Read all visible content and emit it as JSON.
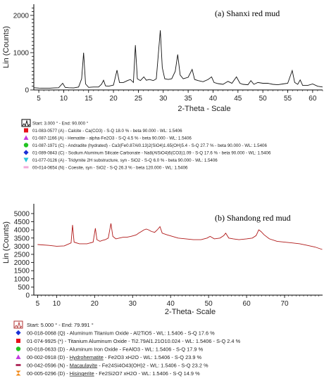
{
  "chart_data": [
    {
      "type": "line",
      "title": "(a) Shanxi red mud",
      "xlabel": "2-Theta - Scale",
      "ylabel": "Lin (Counts)",
      "xlim": [
        4,
        62
      ],
      "ylim": [
        0,
        2300
      ],
      "x_ticks": [
        5,
        10,
        15,
        20,
        25,
        30,
        35,
        40,
        45,
        50,
        55,
        60
      ],
      "y_ticks": [
        0,
        100,
        200,
        300,
        400,
        500,
        600,
        700,
        800,
        900,
        1000,
        1100,
        1200,
        1300,
        1400,
        1500,
        1600,
        1700,
        1800,
        1900,
        2000,
        2100,
        2200
      ],
      "y_tick_labels": [
        "0",
        "",
        "",
        "",
        "",
        "",
        "",
        "",
        "",
        "",
        "1000",
        "",
        "",
        "",
        "",
        "",
        "",
        "",
        "",
        "",
        "2000",
        "",
        ""
      ],
      "series": [
        {
          "values": [
            [
              4,
              60
            ],
            [
              5,
              50
            ],
            [
              6,
              45
            ],
            [
              7,
              45
            ],
            [
              8,
              55
            ],
            [
              9,
              60
            ],
            [
              9.8,
              180
            ],
            [
              10.3,
              70
            ],
            [
              11,
              60
            ],
            [
              12,
              55
            ],
            [
              13,
              80
            ],
            [
              13.6,
              300
            ],
            [
              14,
              1000
            ],
            [
              14.4,
              160
            ],
            [
              15,
              70
            ],
            [
              16,
              80
            ],
            [
              17,
              80
            ],
            [
              17.6,
              150
            ],
            [
              18,
              260
            ],
            [
              18.4,
              110
            ],
            [
              19,
              100
            ],
            [
              20,
              130
            ],
            [
              20.7,
              530
            ],
            [
              21.2,
              200
            ],
            [
              22,
              200
            ],
            [
              22.8,
              250
            ],
            [
              23.4,
              280
            ],
            [
              24,
              200
            ],
            [
              24.4,
              1200
            ],
            [
              24.8,
              300
            ],
            [
              25.4,
              250
            ],
            [
              26.1,
              350
            ],
            [
              26.6,
              260
            ],
            [
              27.2,
              280
            ],
            [
              28,
              250
            ],
            [
              28.6,
              300
            ],
            [
              29.4,
              1600
            ],
            [
              29.8,
              600
            ],
            [
              30.3,
              300
            ],
            [
              31,
              280
            ],
            [
              31.7,
              300
            ],
            [
              32.4,
              500
            ],
            [
              32.9,
              950
            ],
            [
              33.4,
              400
            ],
            [
              34,
              300
            ],
            [
              35,
              340
            ],
            [
              35.8,
              550
            ],
            [
              36.3,
              280
            ],
            [
              37,
              250
            ],
            [
              38,
              220
            ],
            [
              39,
              280
            ],
            [
              39.7,
              350
            ],
            [
              40.2,
              200
            ],
            [
              41,
              170
            ],
            [
              42,
              150
            ],
            [
              43,
              230
            ],
            [
              43.8,
              180
            ],
            [
              44.7,
              350
            ],
            [
              45.4,
              180
            ],
            [
              46,
              150
            ],
            [
              47,
              140
            ],
            [
              47.6,
              250
            ],
            [
              48.2,
              150
            ],
            [
              49,
              200
            ],
            [
              50,
              180
            ],
            [
              51,
              180
            ],
            [
              52,
              150
            ],
            [
              53,
              140
            ],
            [
              54,
              160
            ],
            [
              55,
              180
            ],
            [
              55.9,
              520
            ],
            [
              56.4,
              200
            ],
            [
              57,
              150
            ],
            [
              57.5,
              270
            ],
            [
              58,
              120
            ],
            [
              59,
              120
            ],
            [
              60,
              160
            ],
            [
              61,
              100
            ],
            [
              62,
              80
            ]
          ]
        }
      ],
      "legend": [
        {
          "text": "Start: 3.000 ° - End: 90.000 °",
          "color": "#000000",
          "marker": "box"
        },
        {
          "text": "01-083-0577 (A) - Calcite - Ca(CO3) - S-Q 18.0 % - beta 90.000 - WL: 1.5406",
          "color": "#e8101a",
          "marker": "square"
        },
        {
          "text": "01-087-1166 (A) - Hematite - alpha-Fe2O3 - S-Q 4.5 % - beta 90.000 - WL: 1.5406",
          "color": "#c33be0",
          "marker": "triangle"
        },
        {
          "text": "01-087-1971 (C) - Andradite (hydrated) - Ca3(Fe0.87Al0.13)2(SiO4)1.65(OH)5.4 - S-Q 27.7 % - beta 90.000 - WL: 1.5406",
          "color": "#22c422",
          "marker": "circle"
        },
        {
          "text": "01-089-0843 (C) - Sodium Aluminum Silicate Carbonate - Na8(AlSiO4)6(CO3)1.09 - S-Q 17.6 % - beta 90.000 - WL: 1.5406",
          "color": "#1a2fd6",
          "marker": "diamond"
        },
        {
          "text": "01-077-0126 (A) - Tridymite 2H substructure, syn - SiO2 - S-Q 6.0 % - beta 90.000 - WL: 1.5406",
          "color": "#27c6d8",
          "marker": "triangle-down"
        },
        {
          "text": "00-014-0654 (N) - Coesite, syn - SiO2 - S-Q 26.3 % - beta 120.000 - WL: 1.5406",
          "color": "#f2a8d8",
          "marker": "bar"
        }
      ]
    },
    {
      "type": "line",
      "title": "(b) Shandong red mud",
      "xlabel": "2-Theta- Scale",
      "ylabel": "Lin (Counts)",
      "xlim": [
        4,
        80
      ],
      "ylim": [
        0,
        5600
      ],
      "x_ticks": [
        5,
        10,
        20,
        30,
        40,
        50,
        60,
        70
      ],
      "y_ticks": [
        0,
        500,
        1000,
        1500,
        2000,
        2500,
        3000,
        3500,
        4000,
        4500,
        5000
      ],
      "series": [
        {
          "values": [
            [
              5,
              3100
            ],
            [
              8,
              3050
            ],
            [
              10,
              3000
            ],
            [
              12,
              3020
            ],
            [
              13.8,
              3200
            ],
            [
              14.2,
              4300
            ],
            [
              14.6,
              3250
            ],
            [
              16,
              3150
            ],
            [
              18,
              3150
            ],
            [
              19.6,
              3250
            ],
            [
              20.2,
              4100
            ],
            [
              20.6,
              3400
            ],
            [
              21.4,
              3300
            ],
            [
              22,
              3350
            ],
            [
              22.8,
              3400
            ],
            [
              23.6,
              3500
            ],
            [
              24.3,
              4400
            ],
            [
              24.8,
              3600
            ],
            [
              25.6,
              3450
            ],
            [
              26.5,
              3500
            ],
            [
              27.5,
              3550
            ],
            [
              28.5,
              3550
            ],
            [
              29.5,
              3600
            ],
            [
              30.3,
              3650
            ],
            [
              31,
              3700
            ],
            [
              31.6,
              3800
            ],
            [
              32.3,
              3900
            ],
            [
              33,
              4000
            ],
            [
              33.6,
              4050
            ],
            [
              34.2,
              4000
            ],
            [
              35,
              3900
            ],
            [
              35.8,
              3850
            ],
            [
              36.5,
              4000
            ],
            [
              37.2,
              4200
            ],
            [
              37.8,
              3800
            ],
            [
              39,
              3700
            ],
            [
              40.5,
              3600
            ],
            [
              42,
              3500
            ],
            [
              44,
              3450
            ],
            [
              46,
              3400
            ],
            [
              48,
              3400
            ],
            [
              49.6,
              3500
            ],
            [
              50.4,
              3600
            ],
            [
              51.5,
              3450
            ],
            [
              53,
              3500
            ],
            [
              54,
              3650
            ],
            [
              54.5,
              3800
            ],
            [
              55.3,
              3500
            ],
            [
              56.5,
              3450
            ],
            [
              58,
              3400
            ],
            [
              60,
              3450
            ],
            [
              61.5,
              3500
            ],
            [
              62.5,
              3650
            ],
            [
              63.2,
              4000
            ],
            [
              63.8,
              3900
            ],
            [
              64.6,
              3700
            ],
            [
              66,
              3450
            ],
            [
              68,
              3300
            ],
            [
              70,
              3250
            ],
            [
              72,
              3200
            ],
            [
              74,
              3150
            ],
            [
              76,
              3050
            ],
            [
              78,
              2950
            ],
            [
              79.9,
              2800
            ]
          ]
        }
      ],
      "legend": [
        {
          "text": "Start: 5.000 ° - End: 79.991 °",
          "color": "#b03030",
          "marker": "box"
        },
        {
          "text": "00-018-0068 (Q) - Aluminum Titanium Oxide - Al2TiO5 - WL: 1.5406 - S-Q 17.6 %",
          "color": "#1a2fd6",
          "marker": "diamond"
        },
        {
          "text": "01-074-9925 (*) - Titanium Aluminum Oxide - Ti2.79Al1.21O10.024 - WL: 1.5406 - S-Q 2.4 %",
          "color": "#e8101a",
          "marker": "square"
        },
        {
          "text": "00-018-0633 (D) - Aluminum Iron Oxide - FeAlO3 - WL: 1.5406 - S-Q 17.9 %",
          "color": "#22c422",
          "marker": "circle"
        },
        {
          "text_pre": "00-002-0918 (D) - ",
          "text_ul": "Hydrohematite",
          "text_post": " - Fe2O3 xH2O - WL: 1.5406 - S-Q 23.9 %",
          "color": "#c33be0",
          "marker": "triangle"
        },
        {
          "text_pre": "00-042-0596 (N) - ",
          "text_ul": "Macaulayite",
          "text_post": " - Fe24Si4O43(OH)2 - WL: 1.5406 - S-Q 23.2 %",
          "color": "#b03060",
          "marker": "bar"
        },
        {
          "text_pre": "00-005-0296 (D) - ",
          "text_ul": "Hisingerite",
          "text_post": " - Fe2Si2O7 xH2O - WL: 1.5406 - S-Q 14.9 %",
          "color": "#f28a1a",
          "marker": "hourglass"
        }
      ]
    }
  ]
}
